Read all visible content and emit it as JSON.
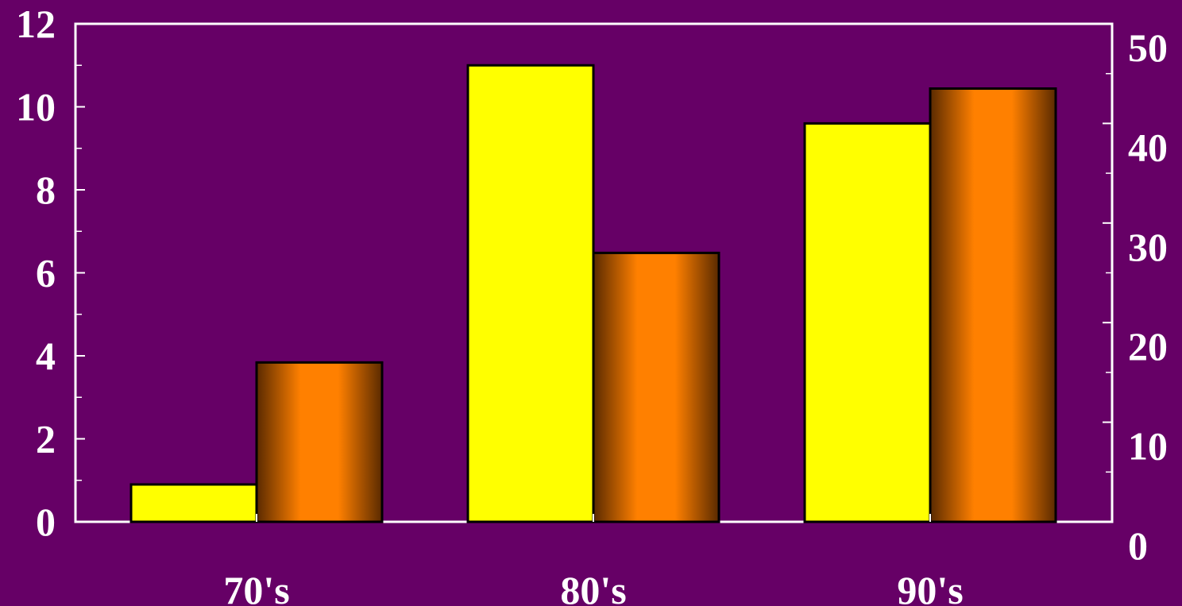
{
  "chart_data": {
    "type": "bar",
    "categories": [
      "70's",
      "80's",
      "90's"
    ],
    "series": [
      {
        "axis": "left",
        "values": [
          0.9,
          11.0,
          9.6
        ],
        "color": "#ffff00"
      },
      {
        "axis": "right",
        "values": [
          16,
          27,
          43.5
        ],
        "color": "#ff8000"
      }
    ],
    "y_left": {
      "ticks": [
        0,
        2,
        4,
        6,
        8,
        10,
        12
      ],
      "ylim": [
        0,
        12
      ]
    },
    "y_right": {
      "ticks": [
        0,
        10,
        20,
        30,
        40,
        50
      ],
      "ylim": [
        0,
        50
      ]
    },
    "grid": false,
    "legend": "none",
    "colors": {
      "background": "#660066",
      "axis": "#ffffff",
      "text": "#ffffff"
    }
  }
}
